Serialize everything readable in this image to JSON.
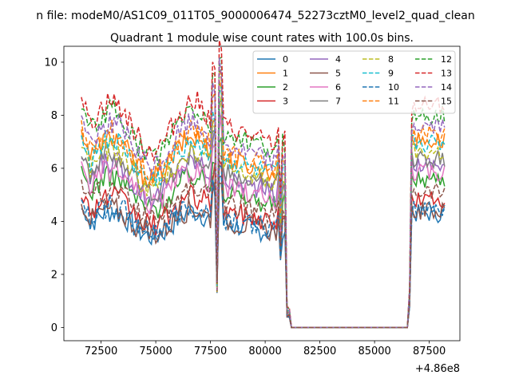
{
  "figure": {
    "suptitle": "n file: modeM0/AS1C09_011T05_9000006474_52273cztM0_level2_quad_clean",
    "title": "Quadrant 1 module wise count rates with 100.0s bins."
  },
  "chart_data": {
    "type": "line",
    "title": "Quadrant 1 module wise count rates with 100.0s bins.",
    "xlabel": "",
    "ylabel": "",
    "x_offset_label": "+4.86e8",
    "xlim": [
      70800,
      88900
    ],
    "ylim": [
      -0.5,
      10.6
    ],
    "x_ticks": [
      72500,
      75000,
      77500,
      80000,
      82500,
      85000,
      87500
    ],
    "x_tick_labels": [
      "72500",
      "75000",
      "77500",
      "80000",
      "82500",
      "85000",
      "87500"
    ],
    "y_ticks": [
      0,
      2,
      4,
      6,
      8,
      10
    ],
    "y_tick_labels": [
      "0",
      "2",
      "4",
      "6",
      "8",
      "10"
    ],
    "grid": false,
    "legend_position": "top-right",
    "legend_columns": 4,
    "series": [
      {
        "name": "0",
        "color": "#1f77b4",
        "dash": "solid",
        "level": 3.9
      },
      {
        "name": "1",
        "color": "#ff7f0e",
        "dash": "solid",
        "level": 6.4
      },
      {
        "name": "2",
        "color": "#2ca02c",
        "dash": "solid",
        "level": 5.1
      },
      {
        "name": "3",
        "color": "#d62728",
        "dash": "solid",
        "level": 4.4
      },
      {
        "name": "4",
        "color": "#9467bd",
        "dash": "solid",
        "level": 5.6
      },
      {
        "name": "5",
        "color": "#8c564b",
        "dash": "solid",
        "level": 4.0
      },
      {
        "name": "6",
        "color": "#e377c2",
        "dash": "solid",
        "level": 5.3
      },
      {
        "name": "7",
        "color": "#7f7f7f",
        "dash": "solid",
        "level": 5.8
      },
      {
        "name": "8",
        "color": "#bcbd22",
        "dash": "dashed",
        "level": 6.0
      },
      {
        "name": "9",
        "color": "#17becf",
        "dash": "dashed",
        "level": 6.3
      },
      {
        "name": "10",
        "color": "#1f77b4",
        "dash": "dashed",
        "level": 4.1
      },
      {
        "name": "11",
        "color": "#ff7f0e",
        "dash": "dashed",
        "level": 6.6
      },
      {
        "name": "12",
        "color": "#2ca02c",
        "dash": "dashed",
        "level": 7.3
      },
      {
        "name": "13",
        "color": "#d62728",
        "dash": "dashed",
        "level": 7.6
      },
      {
        "name": "14",
        "color": "#9467bd",
        "dash": "dashed",
        "level": 6.9
      },
      {
        "name": "15",
        "color": "#8c564b",
        "dash": "dashed",
        "level": 4.7
      }
    ]
  }
}
